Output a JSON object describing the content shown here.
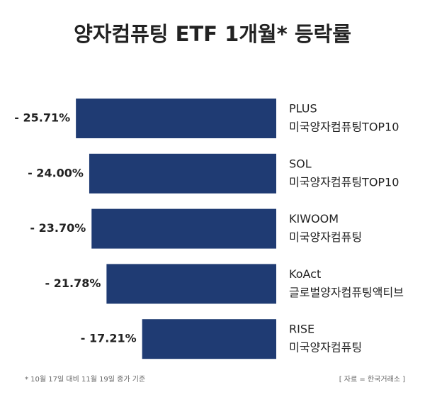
{
  "chart_data": {
    "type": "bar",
    "orientation": "horizontal",
    "title": "양자컴퓨팅 ETF 1개월* 등락률",
    "categories": [
      [
        "PLUS",
        "미국양자컴퓨팅TOP10"
      ],
      [
        "SOL",
        "미국양자컴퓨팅TOP10"
      ],
      [
        "KIWOOM",
        "미국양자컴퓨팅"
      ],
      [
        "KoAct",
        "글로벌양자컴퓨팅액티브"
      ],
      [
        "RISE",
        "미국양자컴퓨팅"
      ]
    ],
    "values": [
      -25.71,
      -24.0,
      -23.7,
      -21.78,
      -17.21
    ],
    "value_labels": [
      "- 25.71%",
      "- 24.00%",
      "- 23.70%",
      "- 21.78%",
      "- 17.21%"
    ],
    "color": "#1f3b73",
    "xlim": [
      -35.45,
      0
    ],
    "footnote": "* 10월 17일 대비 11월 19일 종가 기준",
    "source": "[ 자료 = 한국거래소 ]"
  }
}
